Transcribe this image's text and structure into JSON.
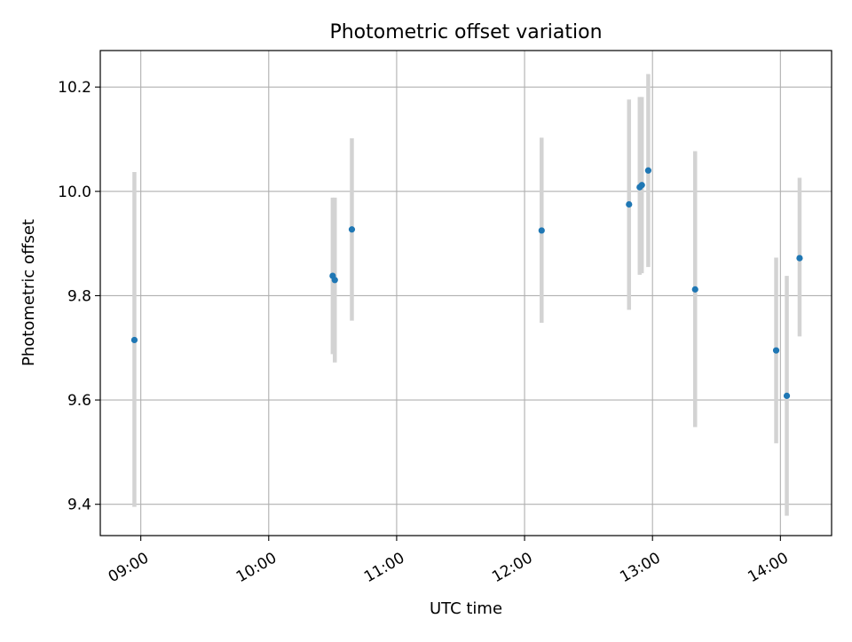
{
  "chart_data": {
    "type": "scatter",
    "title": "Photometric offset variation",
    "xlabel": "UTC time",
    "ylabel": "Photometric offset",
    "x_axis": "time",
    "xlim": [
      "08:41",
      "14:24"
    ],
    "ylim": [
      9.34,
      10.27
    ],
    "xticks": [
      "09:00",
      "10:00",
      "11:00",
      "12:00",
      "13:00",
      "14:00"
    ],
    "yticks": [
      9.4,
      9.6,
      9.8,
      10.0,
      10.2
    ],
    "grid": true,
    "marker_color": "#1f77b4",
    "errorbar_color": "#d3d3d3",
    "points": [
      {
        "x": "08:57",
        "y": 9.715,
        "low": 9.395,
        "high": 10.037
      },
      {
        "x": "10:30",
        "y": 9.838,
        "low": 9.688,
        "high": 9.988
      },
      {
        "x": "10:31",
        "y": 9.83,
        "low": 9.672,
        "high": 9.988
      },
      {
        "x": "10:39",
        "y": 9.927,
        "low": 9.752,
        "high": 10.102
      },
      {
        "x": "12:08",
        "y": 9.925,
        "low": 9.748,
        "high": 10.103
      },
      {
        "x": "12:49",
        "y": 9.975,
        "low": 9.773,
        "high": 10.176
      },
      {
        "x": "12:54",
        "y": 10.008,
        "low": 9.84,
        "high": 10.181
      },
      {
        "x": "12:55",
        "y": 10.012,
        "low": 9.843,
        "high": 10.181
      },
      {
        "x": "12:58",
        "y": 10.04,
        "low": 9.855,
        "high": 10.225
      },
      {
        "x": "13:20",
        "y": 9.812,
        "low": 9.548,
        "high": 10.077
      },
      {
        "x": "13:58",
        "y": 9.695,
        "low": 9.517,
        "high": 9.873
      },
      {
        "x": "14:03",
        "y": 9.608,
        "low": 9.378,
        "high": 9.838
      },
      {
        "x": "14:09",
        "y": 9.872,
        "low": 9.722,
        "high": 10.026
      }
    ]
  }
}
